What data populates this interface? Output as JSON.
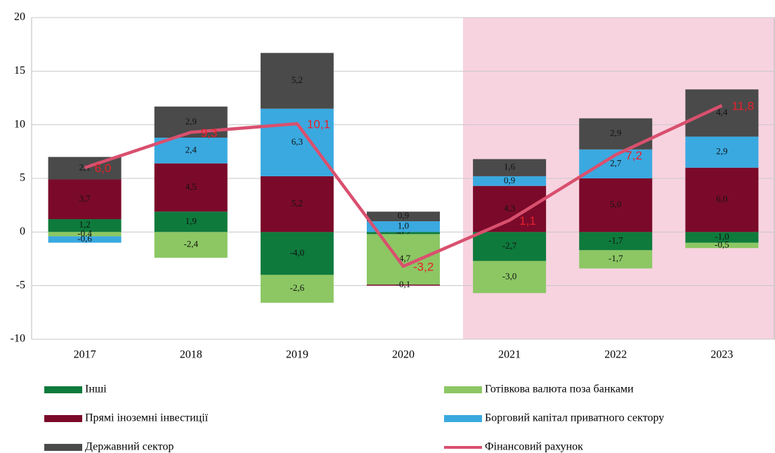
{
  "chart_data": {
    "type": "bar",
    "categories": [
      "2017",
      "2018",
      "2019",
      "2020",
      "2021",
      "2022",
      "2023"
    ],
    "ylim": [
      -10,
      20
    ],
    "yticks": [
      -10,
      -5,
      0,
      5,
      10,
      15,
      20
    ],
    "grid": true,
    "stacked": true,
    "series": [
      {
        "name": "Інші",
        "color": "#0e7a3c",
        "values": [
          1.2,
          1.9,
          -4.0,
          -0.2,
          -2.7,
          -1.7,
          -1.0
        ],
        "value_labels": [
          "1,2",
          "1,9",
          "-4,0",
          "-0,2",
          "-2,7",
          "-1,7",
          "-1,0"
        ]
      },
      {
        "name": "Готівкова валюта поза банками",
        "color": "#8cc764",
        "values": [
          -0.4,
          -2.4,
          -2.6,
          -4.7,
          -3.0,
          -1.7,
          -0.5
        ],
        "value_labels": [
          "-0,4",
          "-2,4",
          "-2,6",
          "-4,7",
          "-3,0",
          "-1,7",
          "-0,5"
        ]
      },
      {
        "name": "Прямі іноземні інвестиції",
        "color": "#7b0a2a",
        "values": [
          3.7,
          4.5,
          5.2,
          -0.1,
          4.3,
          5.0,
          6.0
        ],
        "value_labels": [
          "3,7",
          "4,5",
          "5,2",
          "-0,1",
          "4,3",
          "5,0",
          "6,0"
        ]
      },
      {
        "name": "Борговий капітал приватного сектору",
        "color": "#3aa9e0",
        "values": [
          -0.6,
          2.4,
          6.3,
          1.0,
          0.9,
          2.7,
          2.9
        ],
        "value_labels": [
          "-0,6",
          "2,4",
          "6,3",
          "1,0",
          "0,9",
          "2,7",
          "2,9"
        ]
      },
      {
        "name": "Державний сектор",
        "color": "#4a4a4a",
        "values": [
          2.1,
          2.9,
          5.2,
          0.9,
          1.6,
          2.9,
          4.4
        ],
        "value_labels": [
          "2,1",
          "2,9",
          "5,2",
          "0,9",
          "1,6",
          "2,9",
          "4,4"
        ]
      },
      {
        "name": "Фінансовий рахунок",
        "type": "line",
        "color": "#d9506e",
        "label_color": "#e8202a",
        "values": [
          6.0,
          9.3,
          10.1,
          -3.2,
          1.1,
          7.2,
          11.8
        ],
        "value_labels": [
          "6,0",
          "9,3",
          "10,1",
          "-3,2",
          "1,1",
          "7,2",
          "11,8"
        ]
      }
    ]
  }
}
